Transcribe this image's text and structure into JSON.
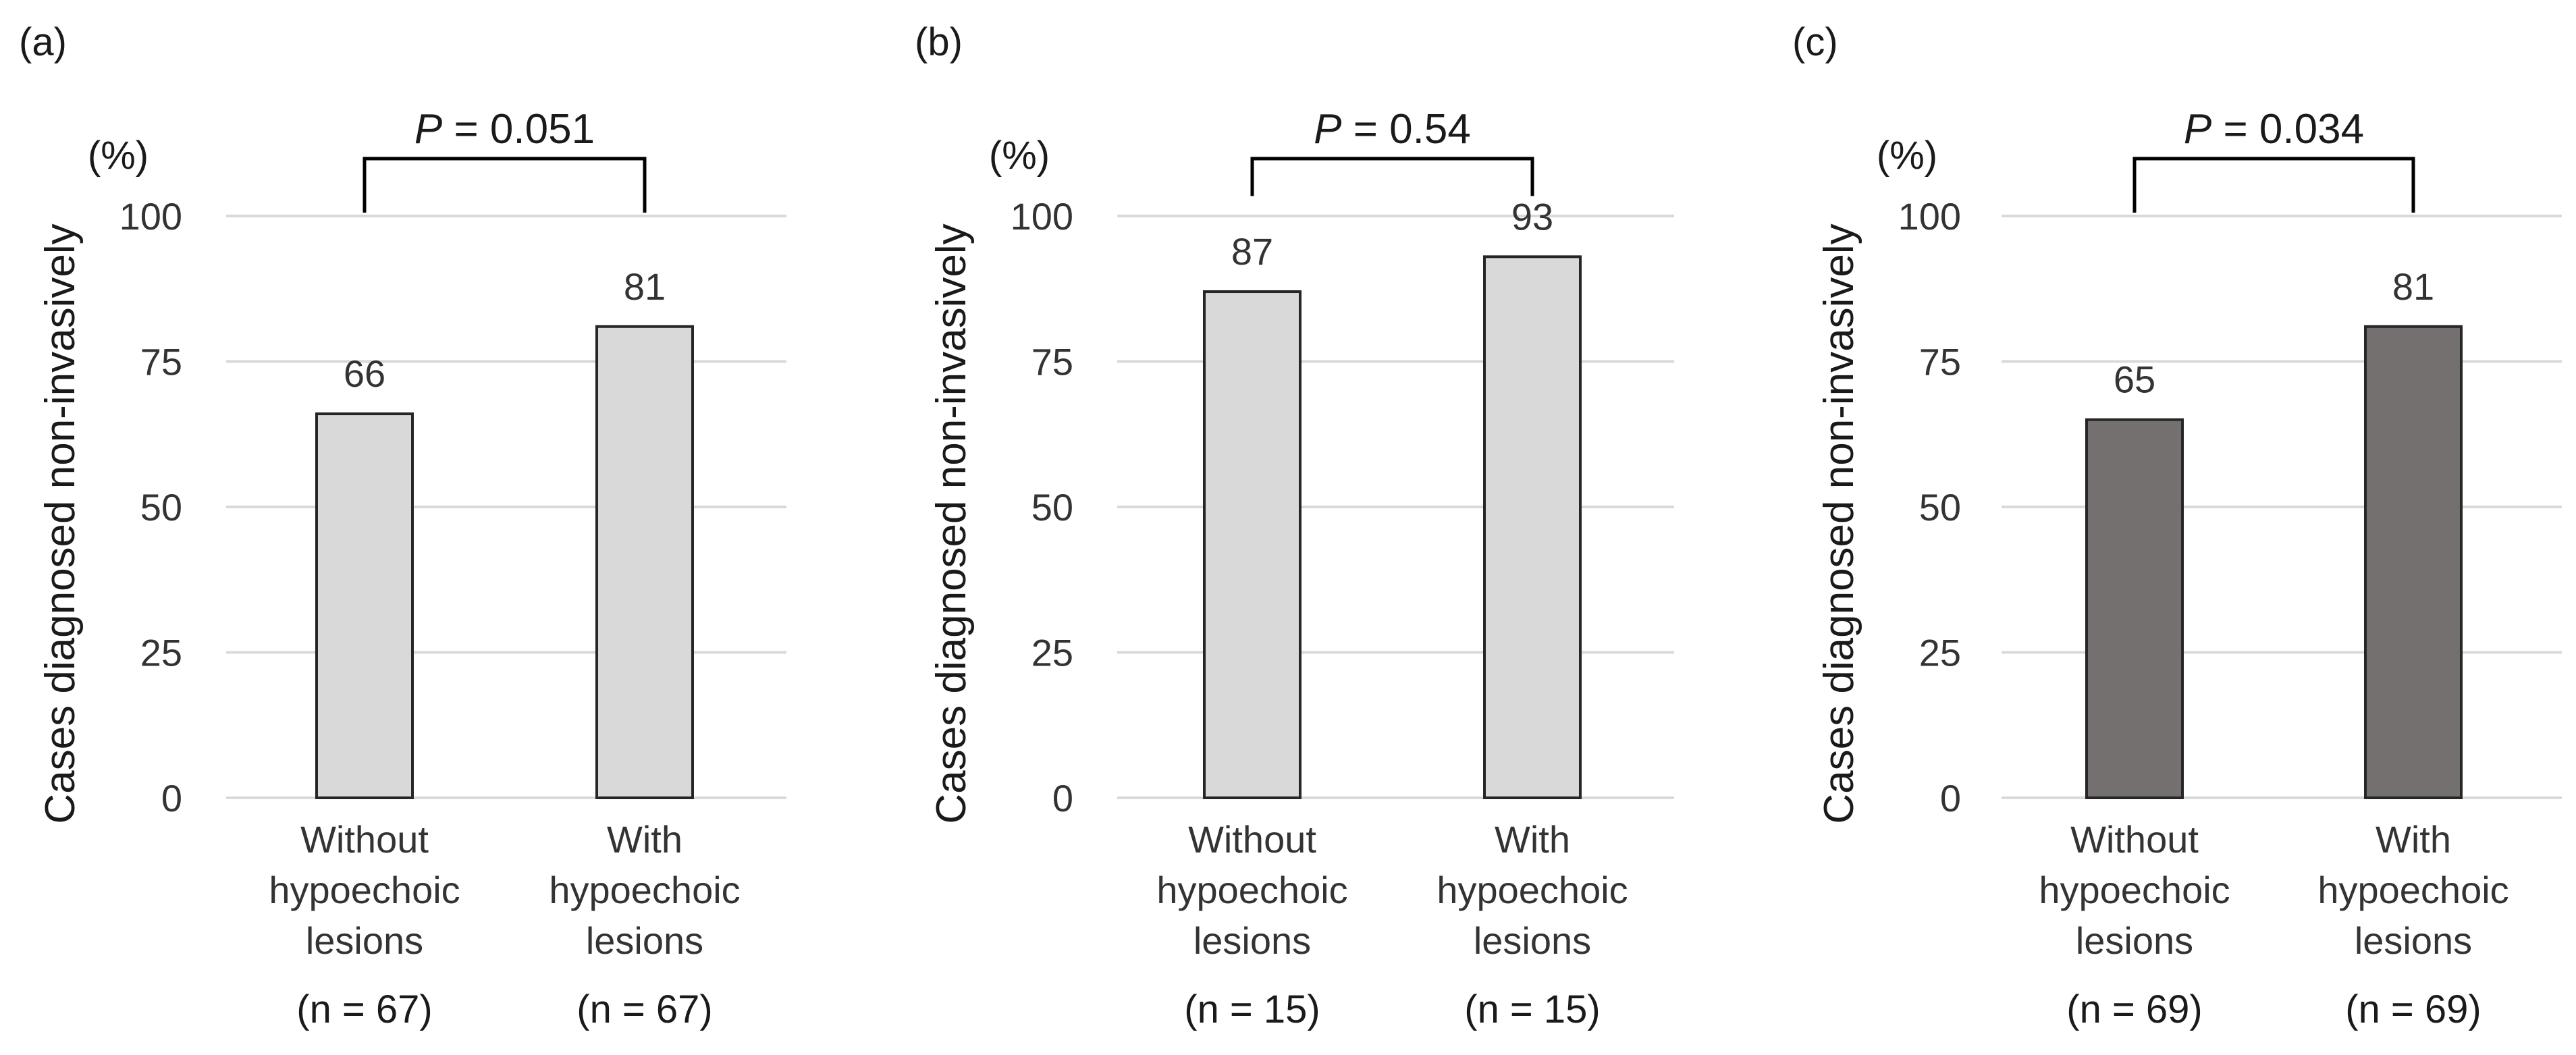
{
  "chart_data": [
    {
      "type": "bar",
      "panel": "(a)",
      "unit": "(%)",
      "ylabel": "Cases diagnosed non-invasively",
      "ylim": [
        0,
        100
      ],
      "yticks": [
        "0",
        "25",
        "50",
        "75",
        "100"
      ],
      "categories": [
        [
          "Without",
          "hypoechoic",
          "lesions"
        ],
        [
          "With",
          "hypoechoic",
          "lesions"
        ]
      ],
      "n_labels": [
        "(n = 67)",
        "(n = 67)"
      ],
      "values": [
        66,
        81
      ],
      "value_labels": [
        "66",
        "81"
      ],
      "p_label": "P",
      "p_value": " = 0.051",
      "bar_color": "#d9d9d9"
    },
    {
      "type": "bar",
      "panel": "(b)",
      "unit": "(%)",
      "ylabel": "Cases diagnosed non-invasively",
      "ylim": [
        0,
        100
      ],
      "yticks": [
        "0",
        "25",
        "50",
        "75",
        "100"
      ],
      "categories": [
        [
          "Without",
          "hypoechoic",
          "lesions"
        ],
        [
          "With",
          "hypoechoic",
          "lesions"
        ]
      ],
      "n_labels": [
        "(n = 15)",
        "(n = 15)"
      ],
      "values": [
        87,
        93
      ],
      "value_labels": [
        "87",
        "93"
      ],
      "p_label": "P",
      "p_value": " = 0.54",
      "bar_color": "#d9d9d9"
    },
    {
      "type": "bar",
      "panel": "(c)",
      "unit": "(%)",
      "ylabel": "Cases diagnosed non-invasively",
      "ylim": [
        0,
        100
      ],
      "yticks": [
        "0",
        "25",
        "50",
        "75",
        "100"
      ],
      "categories": [
        [
          "Without",
          "hypoechoic",
          "lesions"
        ],
        [
          "With",
          "hypoechoic",
          "lesions"
        ]
      ],
      "n_labels": [
        "(n = 69)",
        "(n = 69)"
      ],
      "values": [
        65,
        81
      ],
      "value_labels": [
        "65",
        "81"
      ],
      "p_label": "P",
      "p_value": " = 0.034",
      "bar_color": "#757070"
    }
  ]
}
